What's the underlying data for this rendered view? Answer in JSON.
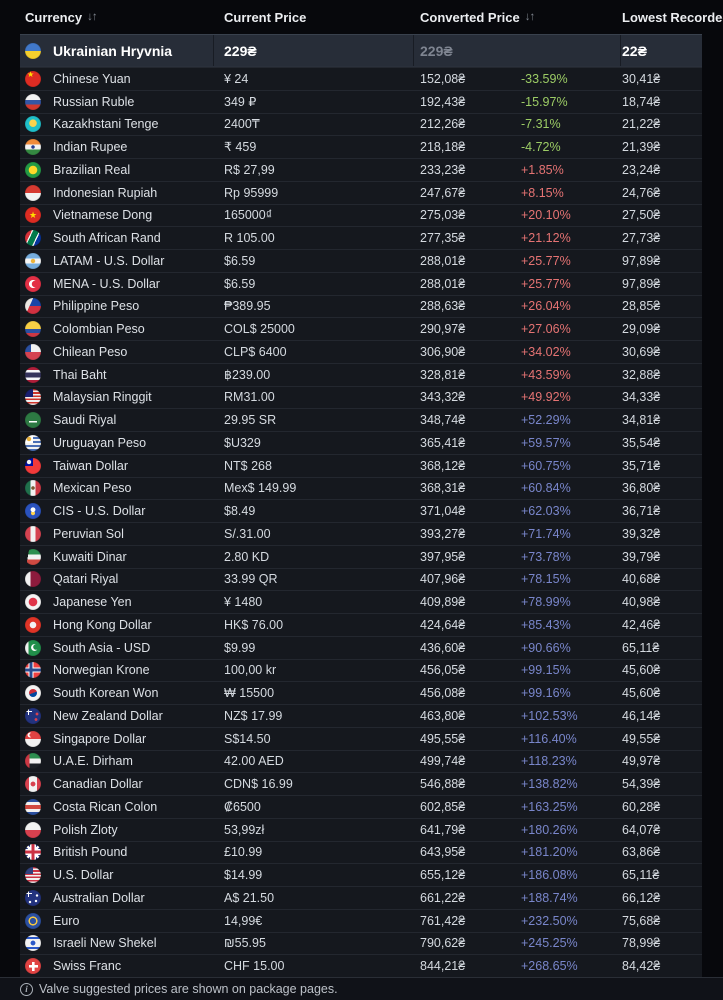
{
  "table": {
    "sort_arrows": "↓↑",
    "columns": [
      {
        "label": "Currency",
        "sortable": true
      },
      {
        "label": "Current Price",
        "sortable": false
      },
      {
        "label": "Converted Price",
        "sortable": true
      },
      {
        "label": "Lowest Recorded",
        "sortable": false
      }
    ],
    "rows": [
      {
        "flag": "ua",
        "name": "Ukrainian Hryvnia",
        "current": "229₴",
        "converted": "229₴",
        "diff": "",
        "trend": null,
        "lowest": "22₴",
        "highlight": true
      },
      {
        "flag": "cn",
        "name": "Chinese Yuan",
        "current": "¥ 24",
        "converted": "152,08₴",
        "diff": "-33.59%",
        "trend": "down",
        "lowest": "30,41₴"
      },
      {
        "flag": "ru",
        "name": "Russian Ruble",
        "current": "349 ₽",
        "converted": "192,43₴",
        "diff": "-15.97%",
        "trend": "down",
        "lowest": "18,74₴"
      },
      {
        "flag": "kz",
        "name": "Kazakhstani Tenge",
        "current": "2400₸",
        "converted": "212,26₴",
        "diff": "-7.31%",
        "trend": "down",
        "lowest": "21,22₴"
      },
      {
        "flag": "in",
        "name": "Indian Rupee",
        "current": "₹ 459",
        "converted": "218,18₴",
        "diff": "-4.72%",
        "trend": "down",
        "lowest": "21,39₴"
      },
      {
        "flag": "br",
        "name": "Brazilian Real",
        "current": "R$ 27,99",
        "converted": "233,23₴",
        "diff": "+1.85%",
        "trend": "up",
        "lowest": "23,24₴"
      },
      {
        "flag": "id",
        "name": "Indonesian Rupiah",
        "current": "Rp 95999",
        "converted": "247,67₴",
        "diff": "+8.15%",
        "trend": "up",
        "lowest": "24,76₴"
      },
      {
        "flag": "vn",
        "name": "Vietnamese Dong",
        "current": "165000₫",
        "converted": "275,03₴",
        "diff": "+20.10%",
        "trend": "up",
        "lowest": "27,50₴"
      },
      {
        "flag": "za",
        "name": "South African Rand",
        "current": "R 105.00",
        "converted": "277,35₴",
        "diff": "+21.12%",
        "trend": "up",
        "lowest": "27,73₴"
      },
      {
        "flag": "ar",
        "name": "LATAM - U.S. Dollar",
        "current": "$6.59",
        "converted": "288,01₴",
        "diff": "+25.77%",
        "trend": "up",
        "lowest": "97,89₴"
      },
      {
        "flag": "tr",
        "name": "MENA - U.S. Dollar",
        "current": "$6.59",
        "converted": "288,01₴",
        "diff": "+25.77%",
        "trend": "up",
        "lowest": "97,89₴"
      },
      {
        "flag": "ph",
        "name": "Philippine Peso",
        "current": "₱389.95",
        "converted": "288,63₴",
        "diff": "+26.04%",
        "trend": "up",
        "lowest": "28,85₴"
      },
      {
        "flag": "co",
        "name": "Colombian Peso",
        "current": "COL$ 25000",
        "converted": "290,97₴",
        "diff": "+27.06%",
        "trend": "up",
        "lowest": "29,09₴"
      },
      {
        "flag": "cl",
        "name": "Chilean Peso",
        "current": "CLP$ 6400",
        "converted": "306,90₴",
        "diff": "+34.02%",
        "trend": "up",
        "lowest": "30,69₴"
      },
      {
        "flag": "th",
        "name": "Thai Baht",
        "current": "฿239.00",
        "converted": "328,81₴",
        "diff": "+43.59%",
        "trend": "up",
        "lowest": "32,88₴"
      },
      {
        "flag": "my",
        "name": "Malaysian Ringgit",
        "current": "RM31.00",
        "converted": "343,32₴",
        "diff": "+49.92%",
        "trend": "up",
        "lowest": "34,33₴"
      },
      {
        "flag": "sa",
        "name": "Saudi Riyal",
        "current": "29.95 SR",
        "converted": "348,74₴",
        "diff": "+52.29%",
        "trend": "high",
        "lowest": "34,81₴"
      },
      {
        "flag": "uy",
        "name": "Uruguayan Peso",
        "current": "$U329",
        "converted": "365,41₴",
        "diff": "+59.57%",
        "trend": "high",
        "lowest": "35,54₴"
      },
      {
        "flag": "tw",
        "name": "Taiwan Dollar",
        "current": "NT$ 268",
        "converted": "368,12₴",
        "diff": "+60.75%",
        "trend": "high",
        "lowest": "35,71₴"
      },
      {
        "flag": "mx",
        "name": "Mexican Peso",
        "current": "Mex$ 149.99",
        "converted": "368,31₴",
        "diff": "+60.84%",
        "trend": "high",
        "lowest": "36,80₴"
      },
      {
        "flag": "cis",
        "name": "CIS - U.S. Dollar",
        "current": "$8.49",
        "converted": "371,04₴",
        "diff": "+62.03%",
        "trend": "high",
        "lowest": "36,71₴"
      },
      {
        "flag": "pe",
        "name": "Peruvian Sol",
        "current": "S/.31.00",
        "converted": "393,27₴",
        "diff": "+71.74%",
        "trend": "high",
        "lowest": "39,32₴"
      },
      {
        "flag": "kw",
        "name": "Kuwaiti Dinar",
        "current": "2.80 KD",
        "converted": "397,95₴",
        "diff": "+73.78%",
        "trend": "high",
        "lowest": "39,79₴"
      },
      {
        "flag": "qa",
        "name": "Qatari Riyal",
        "current": "33.99 QR",
        "converted": "407,96₴",
        "diff": "+78.15%",
        "trend": "high",
        "lowest": "40,68₴"
      },
      {
        "flag": "jp",
        "name": "Japanese Yen",
        "current": "¥ 1480",
        "converted": "409,89₴",
        "diff": "+78.99%",
        "trend": "high",
        "lowest": "40,98₴"
      },
      {
        "flag": "hk",
        "name": "Hong Kong Dollar",
        "current": "HK$ 76.00",
        "converted": "424,64₴",
        "diff": "+85.43%",
        "trend": "high",
        "lowest": "42,46₴"
      },
      {
        "flag": "pk",
        "name": "South Asia - USD",
        "current": "$9.99",
        "converted": "436,60₴",
        "diff": "+90.66%",
        "trend": "high",
        "lowest": "65,11₴"
      },
      {
        "flag": "no",
        "name": "Norwegian Krone",
        "current": "100,00 kr",
        "converted": "456,05₴",
        "diff": "+99.15%",
        "trend": "high",
        "lowest": "45,60₴"
      },
      {
        "flag": "kr",
        "name": "South Korean Won",
        "current": "₩ 15500",
        "converted": "456,08₴",
        "diff": "+99.16%",
        "trend": "high",
        "lowest": "45,60₴"
      },
      {
        "flag": "nz",
        "name": "New Zealand Dollar",
        "current": "NZ$ 17.99",
        "converted": "463,80₴",
        "diff": "+102.53%",
        "trend": "high",
        "lowest": "46,14₴"
      },
      {
        "flag": "sg",
        "name": "Singapore Dollar",
        "current": "S$14.50",
        "converted": "495,55₴",
        "diff": "+116.40%",
        "trend": "high",
        "lowest": "49,55₴"
      },
      {
        "flag": "ae",
        "name": "U.A.E. Dirham",
        "current": "42.00 AED",
        "converted": "499,74₴",
        "diff": "+118.23%",
        "trend": "high",
        "lowest": "49,97₴"
      },
      {
        "flag": "ca",
        "name": "Canadian Dollar",
        "current": "CDN$ 16.99",
        "converted": "546,88₴",
        "diff": "+138.82%",
        "trend": "high",
        "lowest": "54,39₴"
      },
      {
        "flag": "cr",
        "name": "Costa Rican Colon",
        "current": "₡6500",
        "converted": "602,85₴",
        "diff": "+163.25%",
        "trend": "high",
        "lowest": "60,28₴"
      },
      {
        "flag": "pl",
        "name": "Polish Zloty",
        "current": "53,99zł",
        "converted": "641,79₴",
        "diff": "+180.26%",
        "trend": "high",
        "lowest": "64,07₴"
      },
      {
        "flag": "gb",
        "name": "British Pound",
        "current": "£10.99",
        "converted": "643,95₴",
        "diff": "+181.20%",
        "trend": "high",
        "lowest": "63,86₴"
      },
      {
        "flag": "us",
        "name": "U.S. Dollar",
        "current": "$14.99",
        "converted": "655,12₴",
        "diff": "+186.08%",
        "trend": "high",
        "lowest": "65,11₴"
      },
      {
        "flag": "au",
        "name": "Australian Dollar",
        "current": "A$ 21.50",
        "converted": "661,22₴",
        "diff": "+188.74%",
        "trend": "high",
        "lowest": "66,12₴"
      },
      {
        "flag": "eu",
        "name": "Euro",
        "current": "14,99€",
        "converted": "761,42₴",
        "diff": "+232.50%",
        "trend": "high",
        "lowest": "75,68₴"
      },
      {
        "flag": "il",
        "name": "Israeli New Shekel",
        "current": "₪55.95",
        "converted": "790,62₴",
        "diff": "+245.25%",
        "trend": "high",
        "lowest": "78,99₴"
      },
      {
        "flag": "ch",
        "name": "Swiss Franc",
        "current": "CHF 15.00",
        "converted": "844,21₴",
        "diff": "+268.65%",
        "trend": "high",
        "lowest": "84,42₴"
      }
    ]
  },
  "colors": {
    "negative": "#9ccc65",
    "positive_small": "#e57373",
    "positive_large": "#7986cb",
    "base_converted_muted": "#7f8591",
    "row_highlight_bg": "#272d38"
  },
  "footer": {
    "icon": "info-icon",
    "note": "Valve suggested prices are shown on package pages."
  }
}
